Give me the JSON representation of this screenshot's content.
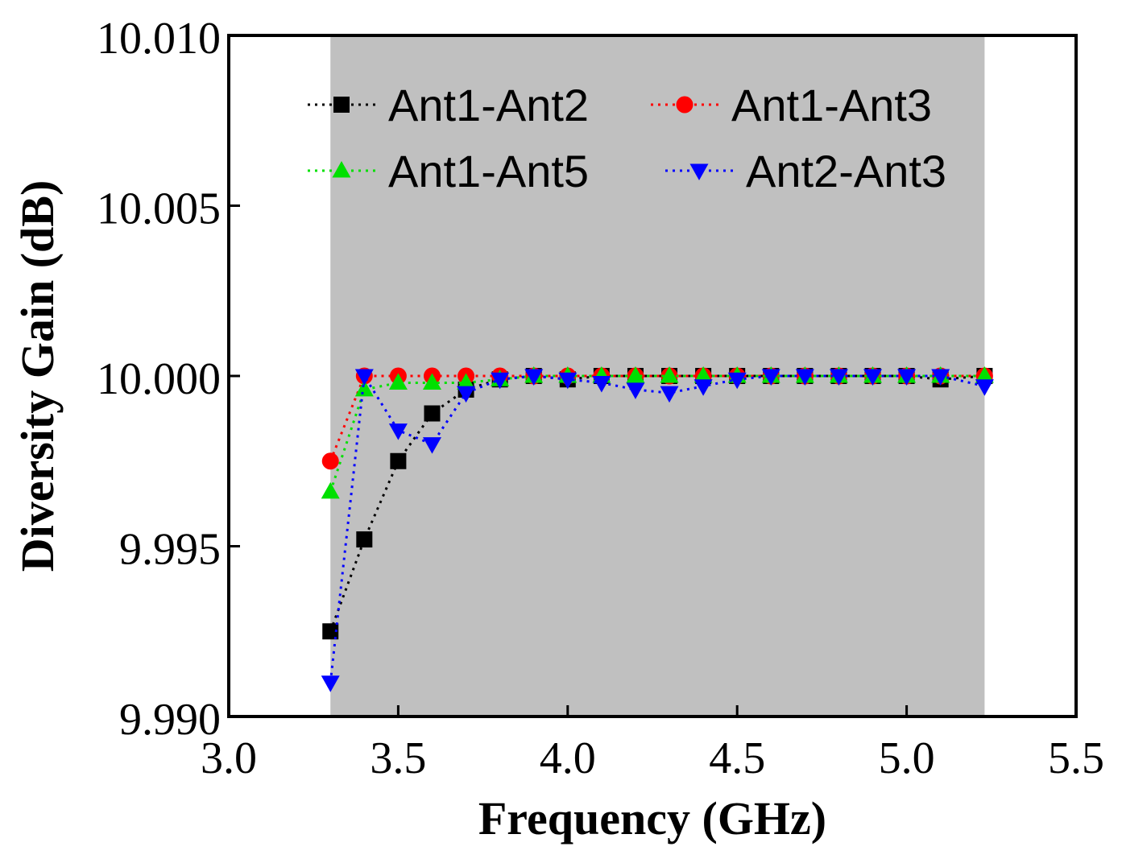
{
  "chart_data": {
    "type": "line",
    "xlabel": "Frequency (GHz)",
    "ylabel": "Diversity Gain (dB)",
    "xlim": [
      3.0,
      5.5
    ],
    "ylim": [
      9.99,
      10.01
    ],
    "xticks": [
      "3.0",
      "3.5",
      "4.0",
      "4.5",
      "5.0",
      "5.5"
    ],
    "yticks": [
      "9.990",
      "9.995",
      "10.000",
      "10.005",
      "10.010"
    ],
    "shaded_band": {
      "x_start": 3.3,
      "x_end": 5.23,
      "color": "#c0c0c0"
    },
    "legend_position": "top",
    "x": [
      3.3,
      3.4,
      3.5,
      3.6,
      3.7,
      3.8,
      3.9,
      4.0,
      4.1,
      4.2,
      4.3,
      4.4,
      4.5,
      4.6,
      4.7,
      4.8,
      4.9,
      5.0,
      5.1,
      5.23
    ],
    "series": [
      {
        "name": "Ant1-Ant2",
        "color": "#000000",
        "marker": "square",
        "values": [
          9.9925,
          9.9952,
          9.9975,
          9.9989,
          9.9996,
          9.9999,
          10.0,
          9.9999,
          10.0,
          10.0,
          10.0,
          10.0,
          10.0,
          10.0,
          10.0,
          10.0,
          10.0,
          10.0,
          9.9999,
          10.0
        ]
      },
      {
        "name": "Ant1-Ant3",
        "color": "#ff0000",
        "marker": "circle",
        "values": [
          9.9975,
          10.0,
          10.0,
          10.0,
          10.0,
          10.0,
          10.0,
          10.0,
          10.0,
          10.0,
          10.0,
          10.0,
          10.0,
          10.0,
          10.0,
          10.0,
          10.0,
          10.0,
          10.0,
          10.0
        ]
      },
      {
        "name": "Ant1-Ant5",
        "color": "#00e000",
        "marker": "triangle-up",
        "values": [
          9.9966,
          9.9996,
          9.9998,
          9.9998,
          9.9998,
          9.9999,
          10.0,
          10.0,
          10.0,
          10.0,
          10.0,
          10.0,
          10.0,
          10.0,
          10.0,
          10.0,
          10.0,
          10.0,
          10.0,
          10.0
        ]
      },
      {
        "name": "Ant2-Ant3",
        "color": "#0000ff",
        "marker": "triangle-down",
        "values": [
          9.991,
          10.0,
          9.9984,
          9.998,
          9.9995,
          9.9999,
          10.0,
          9.9999,
          9.9998,
          9.9996,
          9.9995,
          9.9997,
          9.9999,
          10.0,
          10.0,
          10.0,
          10.0,
          10.0,
          10.0,
          9.9997
        ]
      }
    ]
  }
}
